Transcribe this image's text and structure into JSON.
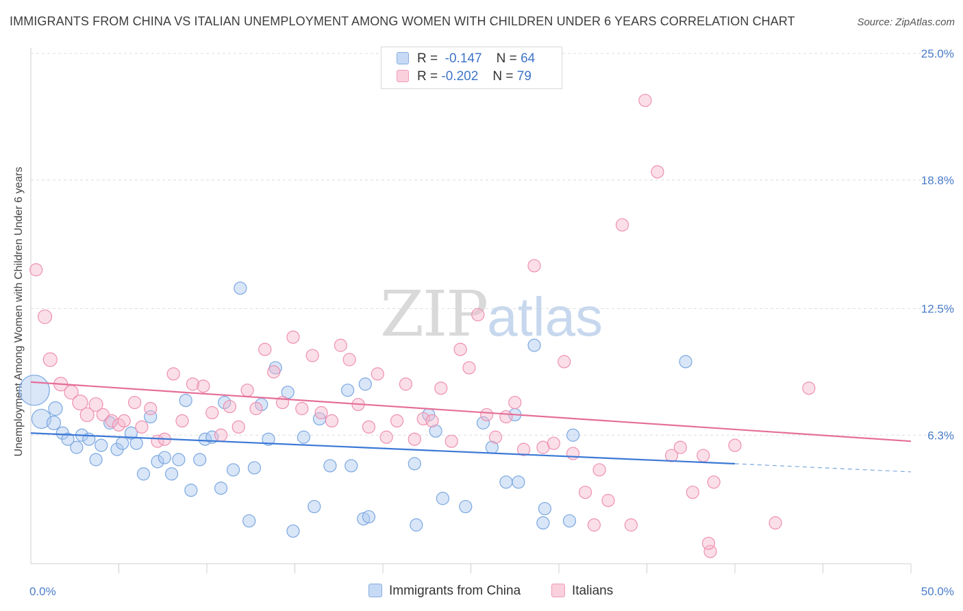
{
  "title": "IMMIGRANTS FROM CHINA VS ITALIAN UNEMPLOYMENT AMONG WOMEN WITH CHILDREN UNDER 6 YEARS CORRELATION CHART",
  "source": "Source: ZipAtlas.com",
  "watermark": {
    "zip": "ZIP",
    "atlas": "atlas"
  },
  "legend": {
    "rows": [
      {
        "r_label": "R =",
        "r_value": "-0.147",
        "n_label": "N =",
        "n_value": "64",
        "color": "#aac8f0"
      },
      {
        "r_label": "R =",
        "r_value": "-0.202",
        "n_label": "N =",
        "n_value": "79",
        "color": "#f6b8cb"
      }
    ]
  },
  "bottom_legend": [
    {
      "label": "Immigrants from China",
      "color": "#aac8f0"
    },
    {
      "label": "Italians",
      "color": "#f6b8cb"
    }
  ],
  "chart_data": {
    "type": "scatter",
    "title": "IMMIGRANTS FROM CHINA VS ITALIAN UNEMPLOYMENT AMONG WOMEN WITH CHILDREN UNDER 6 YEARS CORRELATION CHART",
    "xlabel": "",
    "ylabel": "Unemployment Among Women with Children Under 6 years",
    "xlim": [
      0,
      50
    ],
    "ylim": [
      0,
      25
    ],
    "x_tick_labels": [
      "0.0%",
      "50.0%"
    ],
    "y_ticks": [
      6.3,
      12.5,
      18.8,
      25.0
    ],
    "y_tick_labels": [
      "6.3%",
      "12.5%",
      "18.8%",
      "25.0%"
    ],
    "grid": "horizontal dashed",
    "legend_position": "top-center",
    "series": [
      {
        "name": "Immigrants from China",
        "color": "#7aa7e0",
        "trend": {
          "x0": 0.0,
          "y0": 6.4,
          "x1": 40.0,
          "y1": 4.9,
          "dash_to_x": 50.0,
          "dash_to_y": 4.5
        },
        "points": [
          [
            0.2,
            8.5,
            22
          ],
          [
            0.6,
            7.1,
            14
          ],
          [
            1.3,
            6.9,
            10
          ],
          [
            1.4,
            7.6,
            10
          ],
          [
            1.8,
            6.4,
            9
          ],
          [
            2.1,
            6.1,
            9
          ],
          [
            2.6,
            5.7,
            9
          ],
          [
            2.9,
            6.3,
            9
          ],
          [
            3.3,
            6.1,
            9
          ],
          [
            3.7,
            5.1,
            9
          ],
          [
            4.0,
            5.8,
            9
          ],
          [
            4.5,
            6.9,
            9
          ],
          [
            4.9,
            5.6,
            9
          ],
          [
            5.2,
            5.9,
            9
          ],
          [
            5.7,
            6.4,
            9
          ],
          [
            6.0,
            5.9,
            9
          ],
          [
            6.4,
            4.4,
            9
          ],
          [
            6.8,
            7.2,
            9
          ],
          [
            7.2,
            5.0,
            9
          ],
          [
            7.6,
            5.2,
            9
          ],
          [
            8.0,
            4.4,
            9
          ],
          [
            8.4,
            5.1,
            9
          ],
          [
            8.8,
            8.0,
            9
          ],
          [
            9.1,
            3.6,
            9
          ],
          [
            9.6,
            5.1,
            9
          ],
          [
            9.9,
            6.1,
            9
          ],
          [
            10.3,
            6.2,
            9
          ],
          [
            10.8,
            3.7,
            9
          ],
          [
            11.0,
            7.9,
            9
          ],
          [
            11.5,
            4.6,
            9
          ],
          [
            11.9,
            13.5,
            9
          ],
          [
            12.4,
            2.1,
            9
          ],
          [
            12.7,
            4.7,
            9
          ],
          [
            13.1,
            7.8,
            9
          ],
          [
            13.5,
            6.1,
            9
          ],
          [
            13.9,
            9.6,
            9
          ],
          [
            14.6,
            8.4,
            9
          ],
          [
            14.9,
            1.6,
            9
          ],
          [
            15.5,
            6.2,
            9
          ],
          [
            16.1,
            2.8,
            9
          ],
          [
            16.4,
            7.1,
            9
          ],
          [
            17.0,
            4.8,
            9
          ],
          [
            18.0,
            8.5,
            9
          ],
          [
            18.2,
            4.8,
            9
          ],
          [
            18.9,
            2.2,
            9
          ],
          [
            19.2,
            2.3,
            9
          ],
          [
            19.0,
            8.8,
            9
          ],
          [
            21.8,
            4.9,
            9
          ],
          [
            21.9,
            1.9,
            9
          ],
          [
            22.6,
            7.3,
            9
          ],
          [
            23.0,
            6.5,
            9
          ],
          [
            23.4,
            3.2,
            9
          ],
          [
            24.7,
            2.8,
            9
          ],
          [
            25.7,
            6.9,
            9
          ],
          [
            26.2,
            5.7,
            9
          ],
          [
            27.0,
            4.0,
            9
          ],
          [
            27.5,
            7.3,
            9
          ],
          [
            27.7,
            4.0,
            9
          ],
          [
            28.6,
            10.7,
            9
          ],
          [
            29.2,
            2.7,
            9
          ],
          [
            29.1,
            2.0,
            9
          ],
          [
            30.6,
            2.1,
            9
          ],
          [
            30.8,
            6.3,
            9
          ],
          [
            37.2,
            9.9,
            9
          ]
        ]
      },
      {
        "name": "Italians",
        "color": "#ee8fb0",
        "trend": {
          "x0": 0.0,
          "y0": 8.9,
          "x1": 50.0,
          "y1": 6.0
        },
        "points": [
          [
            0.3,
            14.4,
            9
          ],
          [
            0.8,
            12.1,
            10
          ],
          [
            1.1,
            10.0,
            10
          ],
          [
            1.7,
            8.8,
            10
          ],
          [
            2.3,
            8.4,
            10
          ],
          [
            2.8,
            7.9,
            11
          ],
          [
            3.2,
            7.3,
            10
          ],
          [
            3.7,
            7.8,
            10
          ],
          [
            4.1,
            7.3,
            9
          ],
          [
            4.6,
            7.0,
            9
          ],
          [
            5.0,
            6.8,
            9
          ],
          [
            5.3,
            7.0,
            9
          ],
          [
            5.9,
            7.9,
            9
          ],
          [
            6.3,
            6.7,
            9
          ],
          [
            6.8,
            7.6,
            9
          ],
          [
            7.2,
            6.0,
            9
          ],
          [
            7.6,
            6.1,
            9
          ],
          [
            8.1,
            9.3,
            9
          ],
          [
            8.6,
            7.0,
            9
          ],
          [
            9.2,
            8.8,
            9
          ],
          [
            9.8,
            8.7,
            9
          ],
          [
            10.3,
            7.4,
            9
          ],
          [
            10.8,
            6.3,
            9
          ],
          [
            11.3,
            7.7,
            9
          ],
          [
            11.8,
            6.7,
            9
          ],
          [
            12.3,
            8.5,
            9
          ],
          [
            12.8,
            7.6,
            9
          ],
          [
            13.3,
            10.5,
            9
          ],
          [
            13.8,
            9.4,
            9
          ],
          [
            14.3,
            7.9,
            9
          ],
          [
            14.9,
            11.1,
            9
          ],
          [
            15.4,
            7.6,
            9
          ],
          [
            16.0,
            10.2,
            9
          ],
          [
            16.5,
            7.4,
            9
          ],
          [
            17.1,
            7.0,
            9
          ],
          [
            17.6,
            10.7,
            9
          ],
          [
            18.1,
            10.0,
            9
          ],
          [
            18.6,
            7.8,
            9
          ],
          [
            19.2,
            6.7,
            9
          ],
          [
            19.7,
            9.3,
            9
          ],
          [
            20.2,
            6.2,
            9
          ],
          [
            20.8,
            7.0,
            9
          ],
          [
            21.3,
            8.8,
            9
          ],
          [
            21.8,
            6.1,
            9
          ],
          [
            22.3,
            7.1,
            9
          ],
          [
            22.8,
            7.0,
            9
          ],
          [
            23.3,
            8.6,
            9
          ],
          [
            23.9,
            6.0,
            9
          ],
          [
            24.4,
            10.5,
            9
          ],
          [
            24.9,
            9.6,
            9
          ],
          [
            25.4,
            12.2,
            9
          ],
          [
            25.9,
            7.3,
            9
          ],
          [
            26.4,
            6.2,
            9
          ],
          [
            27.0,
            7.2,
            9
          ],
          [
            27.5,
            7.9,
            9
          ],
          [
            28.0,
            5.6,
            9
          ],
          [
            28.6,
            14.6,
            9
          ],
          [
            29.1,
            5.7,
            9
          ],
          [
            29.7,
            5.9,
            9
          ],
          [
            30.3,
            9.9,
            9
          ],
          [
            30.8,
            5.4,
            9
          ],
          [
            31.5,
            3.5,
            9
          ],
          [
            32.0,
            1.9,
            9
          ],
          [
            32.3,
            4.6,
            9
          ],
          [
            32.8,
            3.1,
            9
          ],
          [
            33.6,
            16.6,
            9
          ],
          [
            34.1,
            1.9,
            9
          ],
          [
            34.9,
            22.7,
            9
          ],
          [
            35.6,
            19.2,
            9
          ],
          [
            36.4,
            5.3,
            9
          ],
          [
            36.9,
            5.7,
            9
          ],
          [
            37.6,
            3.5,
            9
          ],
          [
            38.6,
            0.6,
            9
          ],
          [
            38.2,
            5.3,
            9
          ],
          [
            38.5,
            1.0,
            9
          ],
          [
            38.8,
            4.0,
            9
          ],
          [
            40.0,
            5.8,
            9
          ],
          [
            42.3,
            2.0,
            9
          ],
          [
            44.2,
            8.6,
            9
          ]
        ]
      }
    ]
  }
}
